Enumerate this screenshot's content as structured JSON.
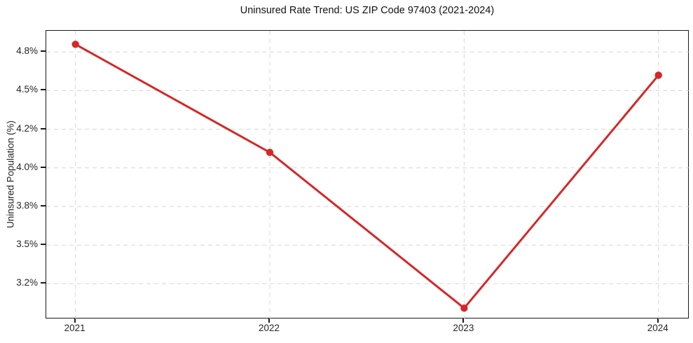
{
  "chart_data": {
    "type": "line",
    "title": "Uninsured Rate Trend: US ZIP Code 97403 (2021-2024)",
    "xlabel": "",
    "ylabel": "Uninsured Population (%)",
    "x": [
      "2021",
      "2022",
      "2023",
      "2024"
    ],
    "series": [
      {
        "name": "Uninsured rate",
        "values": [
          4.86,
          4.08,
          3.01,
          4.62
        ],
        "unit": "%"
      }
    ],
    "x_tick_labels": [
      "2021",
      "2022",
      "2023",
      "2024"
    ],
    "y_tick_labels": [
      "4.8%",
      "4.5%",
      "4.2%",
      "4.0%",
      "3.8%",
      "3.5%",
      "3.2%"
    ],
    "y_tick_values": [
      4.8,
      4.5,
      4.2,
      4.0,
      3.8,
      3.5,
      3.2
    ],
    "grid": true,
    "grid_style": "dashed",
    "legend": false,
    "marker": "circle",
    "colors": {
      "line": "#d62728",
      "grid": "#d6d6d6",
      "axis": "#1a1a1a",
      "text": "#262626",
      "title": "#111111",
      "background": "#ffffff"
    }
  }
}
